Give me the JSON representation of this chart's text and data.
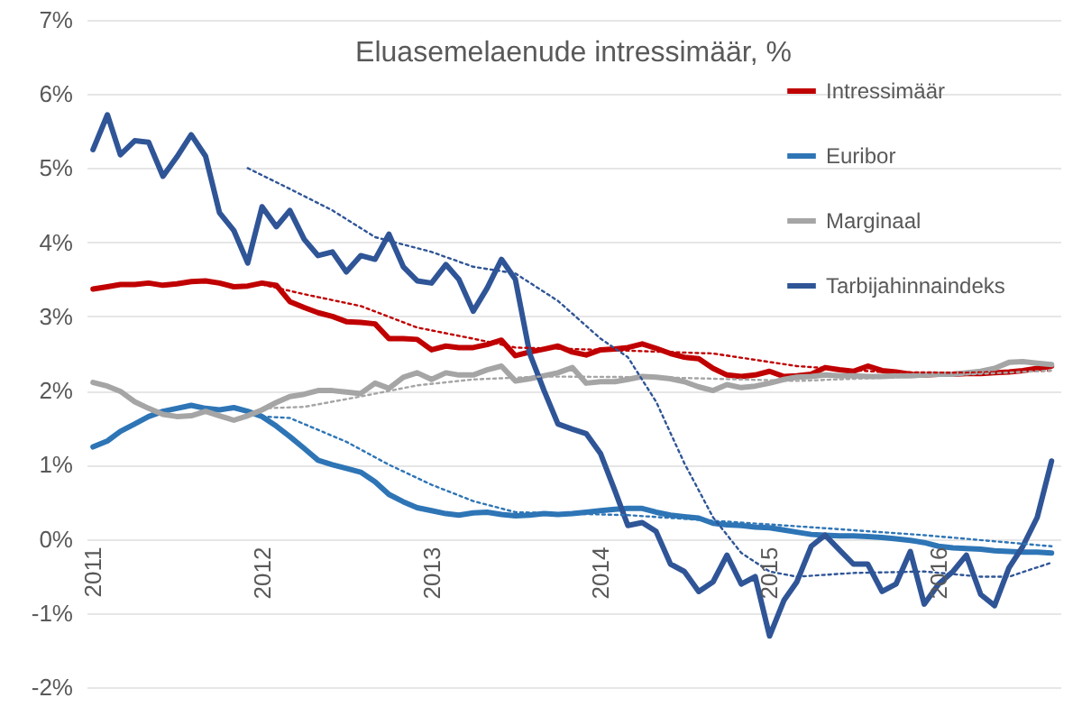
{
  "chart_data": {
    "type": "line",
    "title": "Eluasemelaenude intressimäär, %",
    "x": [
      "2011-01",
      "2011-02",
      "2011-03",
      "2011-04",
      "2011-05",
      "2011-06",
      "2011-07",
      "2011-08",
      "2011-09",
      "2011-10",
      "2011-11",
      "2011-12",
      "2012-01",
      "2012-02",
      "2012-03",
      "2012-04",
      "2012-05",
      "2012-06",
      "2012-07",
      "2012-08",
      "2012-09",
      "2012-10",
      "2012-11",
      "2012-12",
      "2013-01",
      "2013-02",
      "2013-03",
      "2013-04",
      "2013-05",
      "2013-06",
      "2013-07",
      "2013-08",
      "2013-09",
      "2013-10",
      "2013-11",
      "2013-12",
      "2014-01",
      "2014-02",
      "2014-03",
      "2014-04",
      "2014-05",
      "2014-06",
      "2014-07",
      "2014-08",
      "2014-09",
      "2014-10",
      "2014-11",
      "2014-12",
      "2015-01",
      "2015-02",
      "2015-03",
      "2015-04",
      "2015-05",
      "2015-06",
      "2015-07",
      "2015-08",
      "2015-09",
      "2015-10",
      "2015-11",
      "2015-12",
      "2016-01",
      "2016-02",
      "2016-03",
      "2016-04",
      "2016-05",
      "2016-06",
      "2016-07",
      "2016-08",
      "2016-09"
    ],
    "xlim": [
      "2010-12-18",
      "2016-09-20"
    ],
    "xticks": [
      "2011",
      "2012",
      "2013",
      "2014",
      "2015",
      "2016"
    ],
    "ylim": [
      -2,
      7
    ],
    "yticks": [
      {
        "value": -2,
        "label": "-2%"
      },
      {
        "value": -1,
        "label": "-1%"
      },
      {
        "value": 0,
        "label": "0%"
      },
      {
        "value": 1,
        "label": "1%"
      },
      {
        "value": 2,
        "label": "2%"
      },
      {
        "value": 3,
        "label": "3%"
      },
      {
        "value": 4,
        "label": "4%"
      },
      {
        "value": 5,
        "label": "5%"
      },
      {
        "value": 6,
        "label": "6%"
      },
      {
        "value": 7,
        "label": "7%"
      }
    ],
    "grid": "y",
    "legend": "top right",
    "line_style": "solid",
    "series": [
      {
        "name": "Intressimäär",
        "color": "#c00000",
        "values": [
          3.37,
          3.4,
          3.43,
          3.43,
          3.45,
          3.42,
          3.44,
          3.47,
          3.48,
          3.45,
          3.4,
          3.41,
          3.45,
          3.42,
          3.2,
          3.12,
          3.05,
          3.0,
          2.93,
          2.92,
          2.9,
          2.7,
          2.7,
          2.69,
          2.55,
          2.6,
          2.58,
          2.58,
          2.62,
          2.68,
          2.47,
          2.52,
          2.56,
          2.6,
          2.52,
          2.48,
          2.55,
          2.56,
          2.58,
          2.63,
          2.57,
          2.5,
          2.45,
          2.43,
          2.3,
          2.21,
          2.19,
          2.21,
          2.26,
          2.19,
          2.2,
          2.22,
          2.31,
          2.28,
          2.26,
          2.33,
          2.27,
          2.25,
          2.22,
          2.21,
          2.22,
          2.22,
          2.23,
          2.23,
          2.24,
          2.25,
          2.27,
          2.3,
          2.33
        ]
      },
      {
        "name": "Euribor",
        "color": "#2e75b6",
        "values": [
          1.24,
          1.32,
          1.45,
          1.55,
          1.65,
          1.72,
          1.76,
          1.8,
          1.76,
          1.74,
          1.77,
          1.72,
          1.65,
          1.52,
          1.38,
          1.22,
          1.06,
          1.0,
          0.95,
          0.9,
          0.77,
          0.6,
          0.5,
          0.42,
          0.38,
          0.34,
          0.32,
          0.35,
          0.36,
          0.33,
          0.31,
          0.32,
          0.34,
          0.33,
          0.34,
          0.36,
          0.38,
          0.4,
          0.41,
          0.41,
          0.36,
          0.32,
          0.3,
          0.28,
          0.21,
          0.19,
          0.18,
          0.16,
          0.15,
          0.12,
          0.09,
          0.06,
          0.05,
          0.04,
          0.04,
          0.03,
          0.02,
          0.0,
          -0.02,
          -0.05,
          -0.1,
          -0.12,
          -0.13,
          -0.14,
          -0.16,
          -0.17,
          -0.18,
          -0.18,
          -0.19
        ]
      },
      {
        "name": "Marginaal",
        "color": "#a5a5a5",
        "values": [
          2.11,
          2.06,
          1.99,
          1.85,
          1.76,
          1.68,
          1.65,
          1.66,
          1.72,
          1.66,
          1.6,
          1.66,
          1.74,
          1.84,
          1.92,
          1.95,
          2.0,
          2.0,
          1.98,
          1.96,
          2.1,
          2.03,
          2.18,
          2.24,
          2.15,
          2.24,
          2.21,
          2.21,
          2.28,
          2.33,
          2.13,
          2.16,
          2.2,
          2.24,
          2.31,
          2.1,
          2.12,
          2.12,
          2.15,
          2.19,
          2.18,
          2.16,
          2.12,
          2.05,
          2.0,
          2.08,
          2.04,
          2.06,
          2.1,
          2.15,
          2.18,
          2.19,
          2.21,
          2.2,
          2.2,
          2.19,
          2.19,
          2.2,
          2.2,
          2.21,
          2.22,
          2.22,
          2.24,
          2.26,
          2.3,
          2.38,
          2.39,
          2.37,
          2.35
        ]
      },
      {
        "name": "Tarbijahinnaindeks",
        "color": "#2f5597",
        "values": [
          5.25,
          5.72,
          5.18,
          5.37,
          5.35,
          4.89,
          5.15,
          5.45,
          5.16,
          4.4,
          4.16,
          3.72,
          4.48,
          4.21,
          4.43,
          4.04,
          3.82,
          3.87,
          3.6,
          3.82,
          3.77,
          4.11,
          3.67,
          3.48,
          3.45,
          3.7,
          3.5,
          3.07,
          3.38,
          3.77,
          3.5,
          2.5,
          2.0,
          1.55,
          1.48,
          1.42,
          1.15,
          0.65,
          0.18,
          0.22,
          0.1,
          -0.34,
          -0.44,
          -0.71,
          -0.58,
          -0.22,
          -0.61,
          -0.51,
          -1.31,
          -0.83,
          -0.58,
          -0.1,
          0.05,
          -0.15,
          -0.34,
          -0.34,
          -0.71,
          -0.61,
          -0.17,
          -0.88,
          -0.61,
          -0.44,
          -0.22,
          -0.75,
          -0.9,
          -0.39,
          -0.1,
          0.29,
          1.05
        ]
      },
      {
        "type": "line",
        "color": "#c00000",
        "line_style": "dotted",
        "x": [
          "2012-01",
          "2012-04",
          "2012-08",
          "2012-12",
          "2013-04",
          "2013-07",
          "2014-01",
          "2014-09",
          "2015-03",
          "2015-09",
          "2016-03",
          "2016-09"
        ],
        "values": [
          3.43,
          3.3,
          3.14,
          2.85,
          2.7,
          2.58,
          2.55,
          2.5,
          2.33,
          2.25,
          2.24,
          2.27
        ]
      },
      {
        "type": "line",
        "color": "#2e75b6",
        "line_style": "dotted",
        "x": [
          "2012-01",
          "2012-03",
          "2012-07",
          "2012-10",
          "2013-01",
          "2013-04",
          "2013-07",
          "2014-03",
          "2015-03",
          "2015-12",
          "2016-09"
        ],
        "values": [
          1.65,
          1.63,
          1.31,
          1.0,
          0.73,
          0.51,
          0.36,
          0.32,
          0.17,
          0.05,
          -0.1
        ]
      },
      {
        "type": "line",
        "color": "#a5a5a5",
        "line_style": "dotted",
        "x": [
          "2012-01",
          "2012-04",
          "2012-08",
          "2012-12",
          "2013-04",
          "2013-09",
          "2014-05",
          "2015-03",
          "2016-01",
          "2016-09"
        ],
        "values": [
          1.76,
          1.78,
          1.92,
          2.07,
          2.15,
          2.19,
          2.18,
          2.13,
          2.2,
          2.27
        ]
      },
      {
        "type": "line",
        "color": "#2f5597",
        "line_style": "dotted",
        "x": [
          "2011-12",
          "2012-03",
          "2012-06",
          "2012-09",
          "2013-01",
          "2013-04",
          "2013-07",
          "2013-10",
          "2014-01",
          "2014-03",
          "2014-05",
          "2014-07",
          "2014-09",
          "2014-11",
          "2015-01",
          "2015-03",
          "2015-07",
          "2015-12",
          "2016-04",
          "2016-06",
          "2016-09"
        ],
        "values": [
          5.0,
          4.72,
          4.43,
          4.07,
          3.87,
          3.67,
          3.58,
          3.21,
          2.7,
          2.45,
          1.85,
          1.02,
          0.29,
          -0.19,
          -0.44,
          -0.51,
          -0.46,
          -0.44,
          -0.51,
          -0.51,
          -0.32
        ]
      }
    ]
  }
}
